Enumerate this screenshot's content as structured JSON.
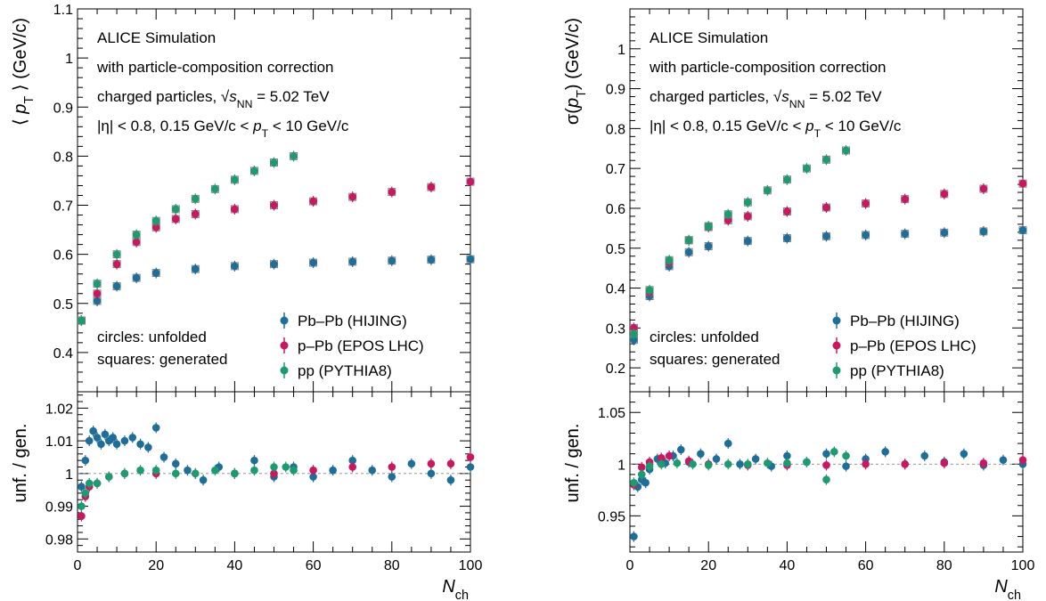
{
  "chart_data": [
    {
      "type": "scatter",
      "panel": "left-upper",
      "ylabel": "⟨ p_T ⟩ (GeV/c)",
      "xlabel": "N_ch",
      "xlim": [
        0,
        100
      ],
      "ylim": [
        0.32,
        1.1
      ],
      "yticks": [
        "0.4",
        "0.5",
        "0.6",
        "0.7",
        "0.8",
        "0.9",
        "1",
        "1.1"
      ],
      "xticks": [
        "0",
        "20",
        "40",
        "60",
        "80",
        "100"
      ],
      "annotations": [
        "ALICE Simulation",
        "with particle-composition correction",
        "charged particles, √s_NN = 5.02 TeV",
        "|η| < 0.8, 0.15 GeV/c < p_T < 10 GeV/c"
      ],
      "notes": [
        "circles: unfolded",
        "squares: generated"
      ],
      "legend": [
        "Pb–Pb (HIJING)",
        "p–Pb (EPOS LHC)",
        "pp (PYTHIA8)"
      ],
      "series": [
        {
          "name": "Pb–Pb (HIJING)",
          "color": "#1f6e99",
          "x": [
            1,
            5,
            10,
            15,
            20,
            30,
            40,
            50,
            60,
            70,
            80,
            90,
            100
          ],
          "y": [
            0.465,
            0.505,
            0.535,
            0.552,
            0.562,
            0.57,
            0.576,
            0.58,
            0.583,
            0.585,
            0.587,
            0.589,
            0.59
          ]
        },
        {
          "name": "p–Pb (EPOS LHC)",
          "color": "#c8185f",
          "x": [
            1,
            5,
            10,
            15,
            20,
            25,
            30,
            40,
            50,
            60,
            70,
            80,
            90,
            100
          ],
          "y": [
            0.465,
            0.52,
            0.58,
            0.625,
            0.655,
            0.672,
            0.682,
            0.692,
            0.7,
            0.708,
            0.717,
            0.727,
            0.737,
            0.748
          ]
        },
        {
          "name": "pp (PYTHIA8)",
          "color": "#1e9a70",
          "x": [
            1,
            5,
            10,
            15,
            20,
            25,
            30,
            35,
            40,
            45,
            50,
            55
          ],
          "y": [
            0.465,
            0.54,
            0.6,
            0.64,
            0.668,
            0.692,
            0.713,
            0.733,
            0.752,
            0.77,
            0.787,
            0.8
          ]
        }
      ]
    },
    {
      "type": "scatter",
      "panel": "left-lower",
      "ylabel": "unf. / gen.",
      "xlabel": "N_ch",
      "xlim": [
        0,
        100
      ],
      "ylim": [
        0.976,
        1.025
      ],
      "yticks": [
        "0.98",
        "0.99",
        "1",
        "1.01",
        "1.02"
      ],
      "xticks": [
        "0",
        "20",
        "40",
        "60",
        "80",
        "100"
      ],
      "series": [
        {
          "name": "Pb–Pb (HIJING)",
          "color": "#1f6e99",
          "x": [
            1,
            2,
            3,
            4,
            5,
            6,
            7,
            8,
            9,
            10,
            12,
            14,
            16,
            18,
            20,
            22,
            25,
            28,
            32,
            36,
            40,
            45,
            50,
            55,
            60,
            65,
            70,
            75,
            80,
            85,
            90,
            95,
            100
          ],
          "y": [
            0.996,
            1.004,
            1.01,
            1.013,
            1.011,
            1.009,
            1.012,
            1.01,
            1.011,
            1.009,
            1.01,
            1.011,
            1.009,
            1.008,
            1.014,
            1.005,
            1.003,
            1.001,
            0.998,
            1.002,
            1.0,
            1.004,
            0.999,
            1.002,
            0.999,
            1.001,
            1.004,
            1.001,
            0.999,
            1.003,
            1.0,
            0.998,
            1.002
          ]
        },
        {
          "name": "p–Pb (EPOS LHC)",
          "color": "#c8185f",
          "x": [
            1,
            2,
            3,
            5,
            8,
            12,
            20,
            30,
            40,
            50,
            60,
            70,
            80,
            90,
            95,
            100
          ],
          "y": [
            0.987,
            0.993,
            0.996,
            0.997,
            0.999,
            1.0,
            1.0,
            1.0,
            1.0,
            1.0,
            1.001,
            1.002,
            1.002,
            1.003,
            1.003,
            1.005
          ]
        },
        {
          "name": "pp (PYTHIA8)",
          "color": "#1e9a70",
          "x": [
            1,
            2,
            3,
            5,
            8,
            12,
            16,
            20,
            25,
            30,
            35,
            40,
            45,
            50,
            53,
            55
          ],
          "y": [
            0.99,
            0.994,
            0.997,
            0.997,
            0.999,
            1.0,
            1.001,
            1.001,
            1.0,
            1.0,
            1.001,
            1.0,
            1.001,
            1.002,
            1.002,
            1.001
          ]
        }
      ]
    },
    {
      "type": "scatter",
      "panel": "right-upper",
      "ylabel": "σ(p_T) (GeV/c)",
      "xlabel": "N_ch",
      "xlim": [
        0,
        100
      ],
      "ylim": [
        0.14,
        1.1
      ],
      "yticks": [
        "0.2",
        "0.3",
        "0.4",
        "0.5",
        "0.6",
        "0.7",
        "0.8",
        "0.9",
        "1"
      ],
      "xticks": [
        "0",
        "20",
        "40",
        "60",
        "80",
        "100"
      ],
      "annotations": [
        "ALICE Simulation",
        "with particle-composition correction",
        "charged particles, √s_NN = 5.02 TeV",
        "|η| < 0.8, 0.15 GeV/c < p_T < 10 GeV/c"
      ],
      "notes": [
        "circles: unfolded",
        "squares: generated"
      ],
      "legend": [
        "Pb–Pb (HIJING)",
        "p–Pb (EPOS LHC)",
        "pp (PYTHIA8)"
      ],
      "series": [
        {
          "name": "Pb–Pb (HIJING)",
          "color": "#1f6e99",
          "x": [
            1,
            5,
            10,
            15,
            20,
            30,
            40,
            50,
            60,
            70,
            80,
            90,
            100
          ],
          "y": [
            0.27,
            0.38,
            0.455,
            0.49,
            0.505,
            0.518,
            0.525,
            0.53,
            0.533,
            0.536,
            0.539,
            0.542,
            0.545
          ]
        },
        {
          "name": "p–Pb (EPOS LHC)",
          "color": "#c8185f",
          "x": [
            1,
            5,
            10,
            15,
            20,
            25,
            30,
            40,
            50,
            60,
            70,
            80,
            90,
            100
          ],
          "y": [
            0.3,
            0.39,
            0.465,
            0.52,
            0.553,
            0.57,
            0.58,
            0.592,
            0.602,
            0.612,
            0.623,
            0.636,
            0.649,
            0.662
          ]
        },
        {
          "name": "pp (PYTHIA8)",
          "color": "#1e9a70",
          "x": [
            1,
            5,
            10,
            15,
            20,
            25,
            30,
            35,
            40,
            45,
            50,
            55
          ],
          "y": [
            0.285,
            0.395,
            0.47,
            0.52,
            0.555,
            0.585,
            0.615,
            0.645,
            0.672,
            0.7,
            0.722,
            0.745
          ]
        }
      ]
    },
    {
      "type": "scatter",
      "panel": "right-lower",
      "ylabel": "unf. / gen.",
      "xlabel": "N_ch",
      "xlim": [
        0,
        100
      ],
      "ylim": [
        0.915,
        1.07
      ],
      "yticks": [
        "0.95",
        "1",
        "1.05"
      ],
      "xticks": [
        "0",
        "20",
        "40",
        "60",
        "80",
        "100"
      ],
      "series": [
        {
          "name": "Pb–Pb (HIJING)",
          "color": "#1f6e99",
          "x": [
            1,
            2,
            3,
            4,
            5,
            7,
            9,
            11,
            13,
            15,
            18,
            22,
            25,
            28,
            32,
            36,
            40,
            45,
            50,
            55,
            60,
            65,
            70,
            75,
            80,
            85,
            90,
            95,
            100
          ],
          "y": [
            0.93,
            0.978,
            0.985,
            0.982,
            0.995,
            1.005,
            1.001,
            1.008,
            1.014,
            1.002,
            1.01,
            1.005,
            1.02,
            1.0,
            1.005,
            0.998,
            1.008,
            1.002,
            1.01,
            0.998,
            1.005,
            1.012,
            1.0,
            1.008,
            1.002,
            1.01,
            0.999,
            1.004,
            1.0
          ]
        },
        {
          "name": "p–Pb (EPOS LHC)",
          "color": "#c8185f",
          "x": [
            1,
            3,
            5,
            8,
            10,
            15,
            20,
            30,
            40,
            50,
            60,
            70,
            80,
            90,
            100
          ],
          "y": [
            0.98,
            0.997,
            1.002,
            1.006,
            1.008,
            1.003,
            1.0,
            0.999,
            0.999,
            0.999,
            1.0,
            1.0,
            1.001,
            1.001,
            1.004
          ]
        },
        {
          "name": "pp (PYTHIA8)",
          "color": "#1e9a70",
          "x": [
            1,
            3,
            5,
            8,
            12,
            16,
            20,
            25,
            30,
            35,
            40,
            45,
            50,
            52,
            55
          ],
          "y": [
            0.982,
            0.99,
            0.998,
            1.0,
            1.001,
            1.0,
            0.999,
            1.0,
            1.0,
            1.001,
            1.001,
            1.002,
            0.985,
            1.012,
            1.008
          ]
        }
      ]
    }
  ]
}
